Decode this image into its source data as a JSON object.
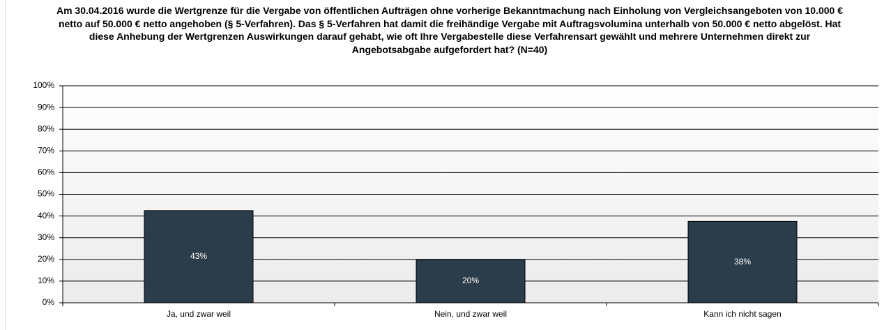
{
  "chart_data": {
    "type": "bar",
    "title": "Am 30.04.2016 wurde die Wertgrenze für die Vergabe von öffentlichen Aufträgen ohne vorherige Bekanntmachung nach Einholung von Vergleichsangeboten von 10.000 € netto auf 50.000 € netto angehoben (§ 5-Verfahren). Das § 5-Verfahren hat damit die freihändige Vergabe mit Auftragsvolumina unterhalb von 50.000 € netto abgelöst. Hat diese Anhebung der Wertgrenzen Auswirkungen darauf gehabt, wie oft Ihre Vergabestelle diese Verfahrensart gewählt und mehrere Unternehmen direkt zur Angebotsabgabe aufgefordert hat? (N=40)",
    "categories": [
      "Ja, und zwar weil",
      "Nein, und zwar weil",
      "Kann ich nicht sagen"
    ],
    "values": [
      42.5,
      20,
      37.5
    ],
    "value_labels": [
      "43%",
      "20%",
      "38%"
    ],
    "color": "#2b3d4a",
    "ylim": [
      0,
      100
    ],
    "yticks": [
      {
        "value": 0,
        "label": "0%"
      },
      {
        "value": 10,
        "label": "10%"
      },
      {
        "value": 20,
        "label": "20%"
      },
      {
        "value": 30,
        "label": "30%"
      },
      {
        "value": 40,
        "label": "40%"
      },
      {
        "value": 50,
        "label": "50%"
      },
      {
        "value": 60,
        "label": "60%"
      },
      {
        "value": 70,
        "label": "70%"
      },
      {
        "value": 80,
        "label": "80%"
      },
      {
        "value": 90,
        "label": "90%"
      },
      {
        "value": 100,
        "label": "100%"
      }
    ],
    "grid": true
  }
}
